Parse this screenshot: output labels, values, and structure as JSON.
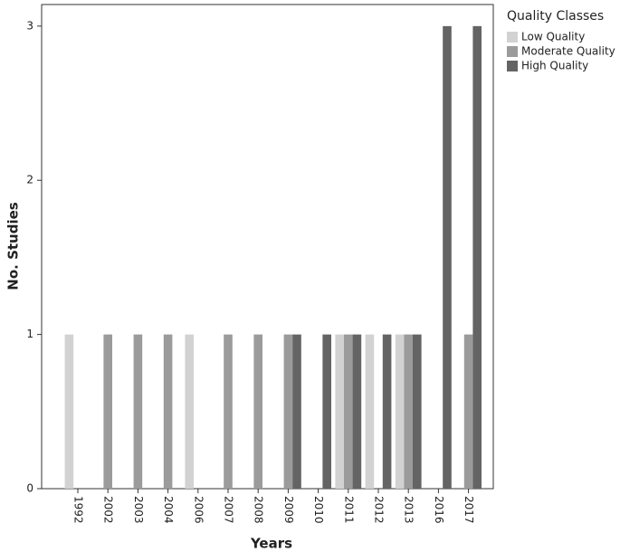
{
  "chart_data": {
    "type": "bar",
    "x_label": "Years",
    "y_label": "No. Studies",
    "legend_title": "Quality Classes",
    "legend": "right",
    "categories": [
      "1992",
      "2002",
      "2003",
      "2004",
      "2006",
      "2007",
      "2008",
      "2009",
      "2010",
      "2011",
      "2012",
      "2013",
      "2016",
      "2017"
    ],
    "series": [
      {
        "name": "Low Quality",
        "color": "#d2d2d2",
        "values": [
          1,
          0,
          0,
          0,
          1,
          0,
          0,
          0,
          0,
          1,
          1,
          1,
          0,
          0
        ]
      },
      {
        "name": "Moderate Quality",
        "color": "#9b9b9b",
        "values": [
          0,
          1,
          1,
          1,
          0,
          1,
          1,
          1,
          0,
          1,
          0,
          1,
          0,
          1
        ]
      },
      {
        "name": "High Quality",
        "color": "#646464",
        "values": [
          0,
          0,
          0,
          0,
          0,
          0,
          0,
          1,
          1,
          1,
          1,
          1,
          3,
          3
        ]
      }
    ],
    "ylim": [
      0,
      3.14
    ],
    "yticks": [
      0,
      1,
      2,
      3
    ]
  }
}
